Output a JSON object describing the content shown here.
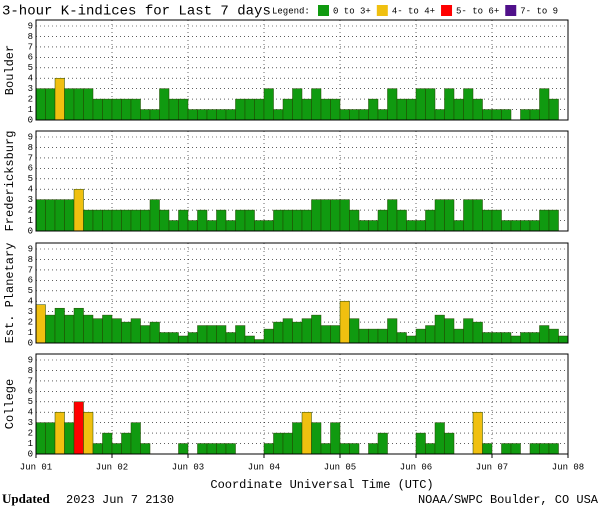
{
  "title": "3-hour K-indices for Last 7 days",
  "legend": {
    "label": "Legend:",
    "items": [
      {
        "label": "0 to 3+",
        "color": "#109a10"
      },
      {
        "label": "4- to 4+",
        "color": "#f0c010"
      },
      {
        "label": "5- to 6+",
        "color": "#ff0000"
      },
      {
        "label": "7- to 9",
        "color": "#50108a"
      }
    ]
  },
  "days": [
    "Jun 01",
    "Jun 02",
    "Jun 03",
    "Jun 04",
    "Jun 05",
    "Jun 06",
    "Jun 07",
    "Jun 08"
  ],
  "x_label": "Coordinate Universal Time (UTC)",
  "footer": {
    "updated": "Updated",
    "time": "2023 Jun  7 2130",
    "source": "NOAA/SWPC Boulder, CO USA"
  },
  "chart_data": [
    {
      "type": "bar",
      "ylabel": "Boulder",
      "ylim": [
        0,
        9
      ],
      "yticks": [
        0,
        1,
        2,
        3,
        4,
        5,
        6,
        7,
        8,
        9
      ],
      "grid": true,
      "values": [
        3,
        3,
        4,
        3,
        3,
        3,
        2,
        2,
        2,
        2,
        2,
        1,
        1,
        3,
        2,
        2,
        1,
        1,
        1,
        1,
        1,
        2,
        2,
        2,
        3,
        1,
        2,
        3,
        2,
        3,
        2,
        2,
        1,
        1,
        1,
        2,
        1,
        3,
        2,
        2,
        3,
        3,
        1,
        3,
        2,
        3,
        2,
        1,
        1,
        1,
        0,
        1,
        1,
        3,
        2,
        0
      ]
    },
    {
      "type": "bar",
      "ylabel": "Fredericksburg",
      "ylim": [
        0,
        9
      ],
      "yticks": [
        0,
        1,
        2,
        3,
        4,
        5,
        6,
        7,
        8,
        9
      ],
      "grid": true,
      "values": [
        3,
        3,
        3,
        3,
        4,
        2,
        2,
        2,
        2,
        2,
        2,
        2,
        3,
        2,
        1,
        2,
        1,
        2,
        1,
        2,
        1,
        2,
        2,
        1,
        1,
        2,
        2,
        2,
        2,
        3,
        3,
        3,
        3,
        2,
        1,
        1,
        2,
        3,
        2,
        1,
        1,
        2,
        3,
        3,
        1,
        3,
        3,
        2,
        2,
        1,
        1,
        1,
        1,
        2,
        2,
        0
      ]
    },
    {
      "type": "bar",
      "ylabel": "Est. Planetary",
      "ylim": [
        0,
        9
      ],
      "yticks": [
        0,
        1,
        2,
        3,
        4,
        5,
        6,
        7,
        8,
        9
      ],
      "grid": true,
      "values": [
        3.67,
        2.67,
        3.33,
        2.67,
        3.33,
        2.67,
        2.33,
        2.67,
        2.33,
        2,
        2.33,
        1.67,
        2,
        1,
        1,
        0.67,
        1,
        1.67,
        1.67,
        1.67,
        1,
        1.67,
        0.67,
        0.33,
        1.33,
        2,
        2.33,
        2,
        2.33,
        2.67,
        1.67,
        1.67,
        4,
        2.33,
        1.33,
        1.33,
        1.33,
        2.33,
        1,
        0.67,
        1.33,
        1.67,
        2.67,
        2.33,
        1.33,
        2.33,
        2,
        1,
        1,
        1,
        0.67,
        1,
        1,
        1.67,
        1.33,
        0.67
      ]
    },
    {
      "type": "bar",
      "ylabel": "College",
      "ylim": [
        0,
        9
      ],
      "yticks": [
        0,
        1,
        2,
        3,
        4,
        5,
        6,
        7,
        8,
        9
      ],
      "grid": true,
      "values": [
        3,
        3,
        4,
        3,
        5,
        4,
        1,
        2,
        1,
        2,
        3,
        1,
        0,
        0,
        0,
        1,
        0,
        1,
        1,
        1,
        1,
        0,
        0,
        0,
        1,
        2,
        2,
        3,
        4,
        3,
        1,
        3,
        1,
        1,
        0,
        1,
        2,
        0,
        0,
        0,
        2,
        1,
        3,
        2,
        0,
        0,
        4,
        1,
        0,
        1,
        1,
        0,
        1,
        1,
        1,
        0
      ]
    }
  ]
}
